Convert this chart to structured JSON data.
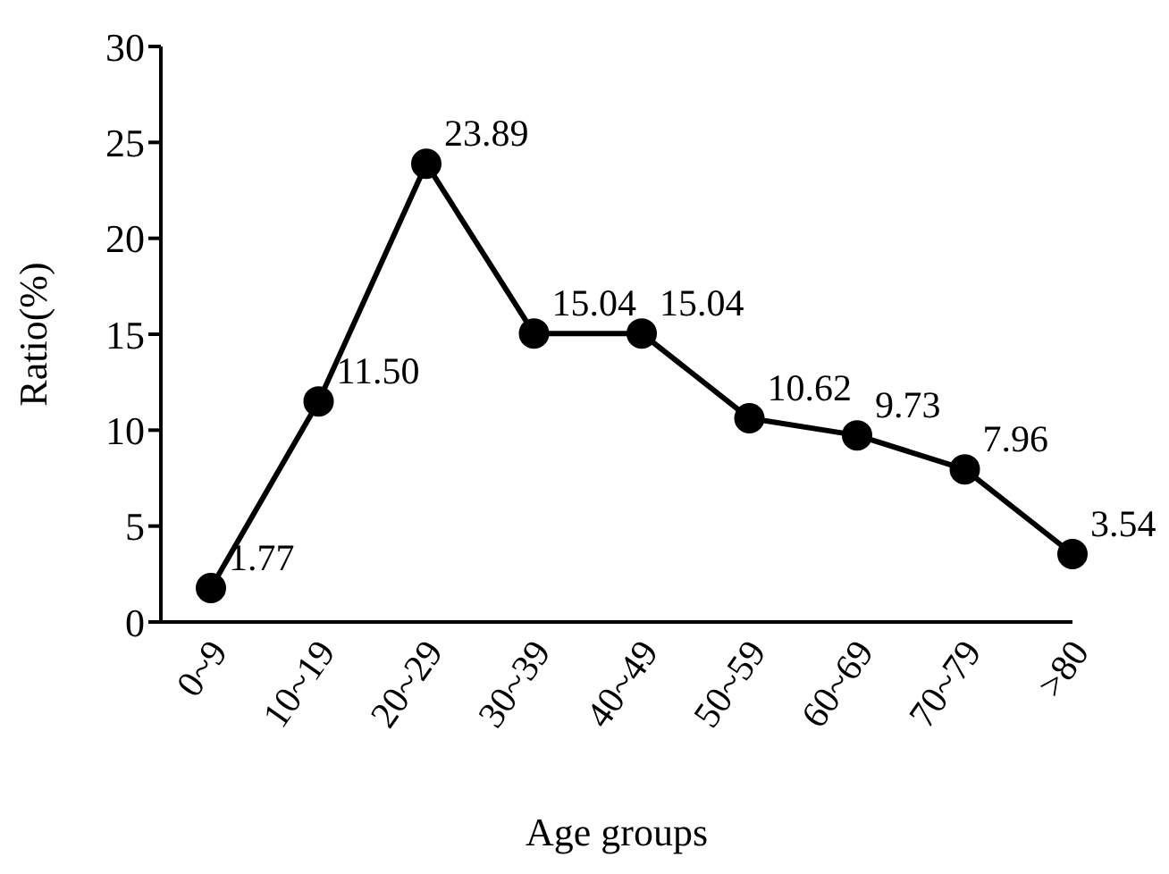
{
  "chart_data": {
    "type": "line",
    "xlabel": "Age groups",
    "ylabel": "Ratio(%)",
    "categories": [
      "0~9",
      "10~19",
      "20~29",
      "30~39",
      "40~49",
      "50~59",
      "60~69",
      "70~79",
      ">80"
    ],
    "values": [
      1.77,
      11.5,
      23.89,
      15.04,
      15.04,
      10.62,
      9.73,
      7.96,
      3.54
    ],
    "value_labels": [
      "1.77",
      "11.50",
      "23.89",
      "15.04",
      "15.04",
      "10.62",
      "9.73",
      "7.96",
      "3.54"
    ],
    "color": "#000000",
    "ylim": [
      0,
      30
    ],
    "yticks": [
      0,
      5,
      10,
      15,
      20,
      25,
      30
    ],
    "grid": false,
    "marker": "circle",
    "line_style": "solid"
  }
}
